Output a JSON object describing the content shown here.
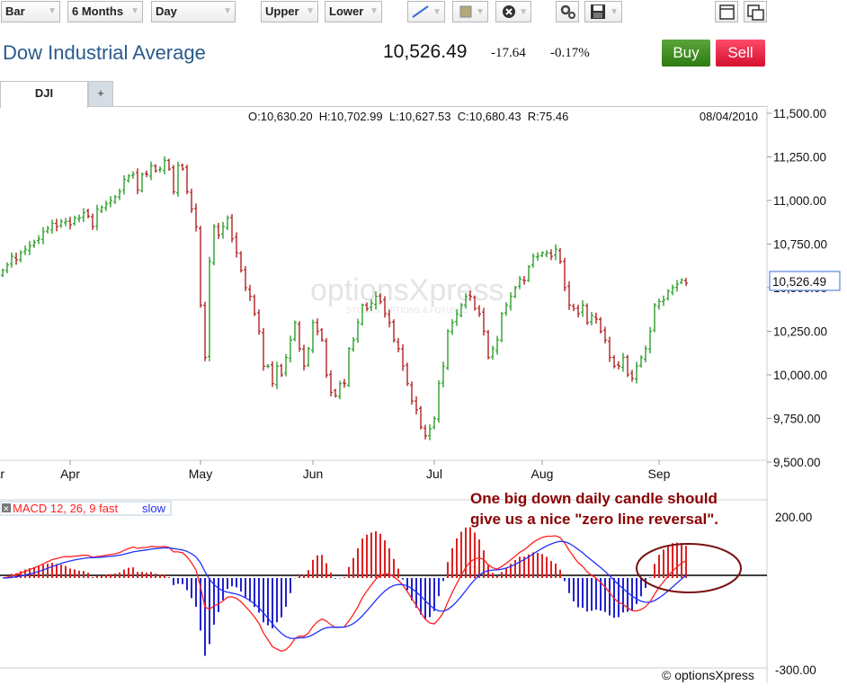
{
  "toolbar": {
    "chart_type": "Bar",
    "range": "6 Months",
    "interval": "Day",
    "upper": "Upper",
    "lower": "Lower"
  },
  "header": {
    "title": "Dow Industrial Average",
    "last": "10,526.49",
    "change": "-17.64",
    "change_pct": "-0.17%",
    "buy_label": "Buy",
    "sell_label": "Sell"
  },
  "tabs": [
    {
      "label": "DJI"
    },
    {
      "label": "+"
    }
  ],
  "colors": {
    "up": "#2ca02c",
    "down": "#b22222",
    "macd": "#ff2020",
    "signal": "#2030ff",
    "hist_pos": "#dd2222",
    "hist_neg": "#2222cc",
    "annotation": "#8b0000"
  },
  "chart_data": [
    {
      "type": "ohlc",
      "ohlc_readout": "O:10,630.20  H:10,702.99  L:10,627.53  C:10,680.43  R:75.46",
      "readout_date": "08/04/2010",
      "last_price_label": "10,526.49",
      "last_price": 10526.49,
      "watermark": "optionsXpress",
      "watermark_sub": "STOCKS, OPTIONS & FUTURES",
      "ylim": [
        9500,
        11500
      ],
      "yticks": [
        "11,500.00",
        "11,250.00",
        "11,000.00",
        "10,750.00",
        "10,500.00",
        "10,250.00",
        "10,000.00",
        "9,750.00",
        "9,500.00"
      ],
      "ytick_values": [
        11500,
        11250,
        11000,
        10750,
        10500,
        10250,
        10000,
        9750,
        9500
      ],
      "xticks": [
        "Mar",
        "Apr",
        "May",
        "Jun",
        "Jul",
        "Aug",
        "Sep"
      ],
      "xtick_index": [
        -2,
        15,
        44,
        69,
        96,
        120,
        146
      ],
      "closes": [
        10600,
        10630,
        10680,
        10660,
        10700,
        10720,
        10740,
        10760,
        10780,
        10820,
        10840,
        10870,
        10850,
        10880,
        10880,
        10860,
        10900,
        10900,
        10930,
        10910,
        10850,
        10950,
        10960,
        10980,
        11000,
        11020,
        11050,
        11120,
        11140,
        11150,
        11060,
        11150,
        11150,
        11200,
        11170,
        11180,
        11230,
        11180,
        11050,
        11200,
        11180,
        11050,
        10950,
        10850,
        10400,
        10100,
        10650,
        10850,
        10800,
        10850,
        10900,
        10780,
        10700,
        10600,
        10500,
        10450,
        10350,
        10250,
        10050,
        10050,
        9950,
        10050,
        10000,
        10100,
        10200,
        10300,
        10150,
        10050,
        10150,
        10300,
        10250,
        10200,
        10000,
        9900,
        9880,
        9950,
        9950,
        10150,
        10200,
        10300,
        10400,
        10380,
        10410,
        10450,
        10420,
        10350,
        10300,
        10200,
        10150,
        10050,
        9950,
        9850,
        9800,
        9700,
        9650,
        9690,
        9750,
        9950,
        10050,
        10250,
        10300,
        10350,
        10400,
        10450,
        10450,
        10380,
        10350,
        10250,
        10100,
        10150,
        10200,
        10350,
        10400,
        10450,
        10500,
        10550,
        10540,
        10620,
        10680,
        10680,
        10700,
        10700,
        10680,
        10720,
        10650,
        10500,
        10400,
        10380,
        10350,
        10400,
        10300,
        10340,
        10320,
        10250,
        10200,
        10100,
        10050,
        10050,
        10100,
        10000,
        9980,
        10050,
        10100,
        10150,
        10250,
        10400,
        10420,
        10430,
        10480,
        10500,
        10520,
        10544,
        10526
      ]
    },
    {
      "type": "macd",
      "label": "MACD 12, 26, 9 fast",
      "slow_label": "slow",
      "ylim": [
        -300,
        200
      ],
      "yticks": [
        "200.00",
        "-300.00"
      ],
      "ytick_values": [
        200,
        -300
      ],
      "annotation": [
        "One big down daily candle should",
        "give us a nice \"zero line reversal\"."
      ],
      "copyright": "© optionsXpress"
    }
  ]
}
